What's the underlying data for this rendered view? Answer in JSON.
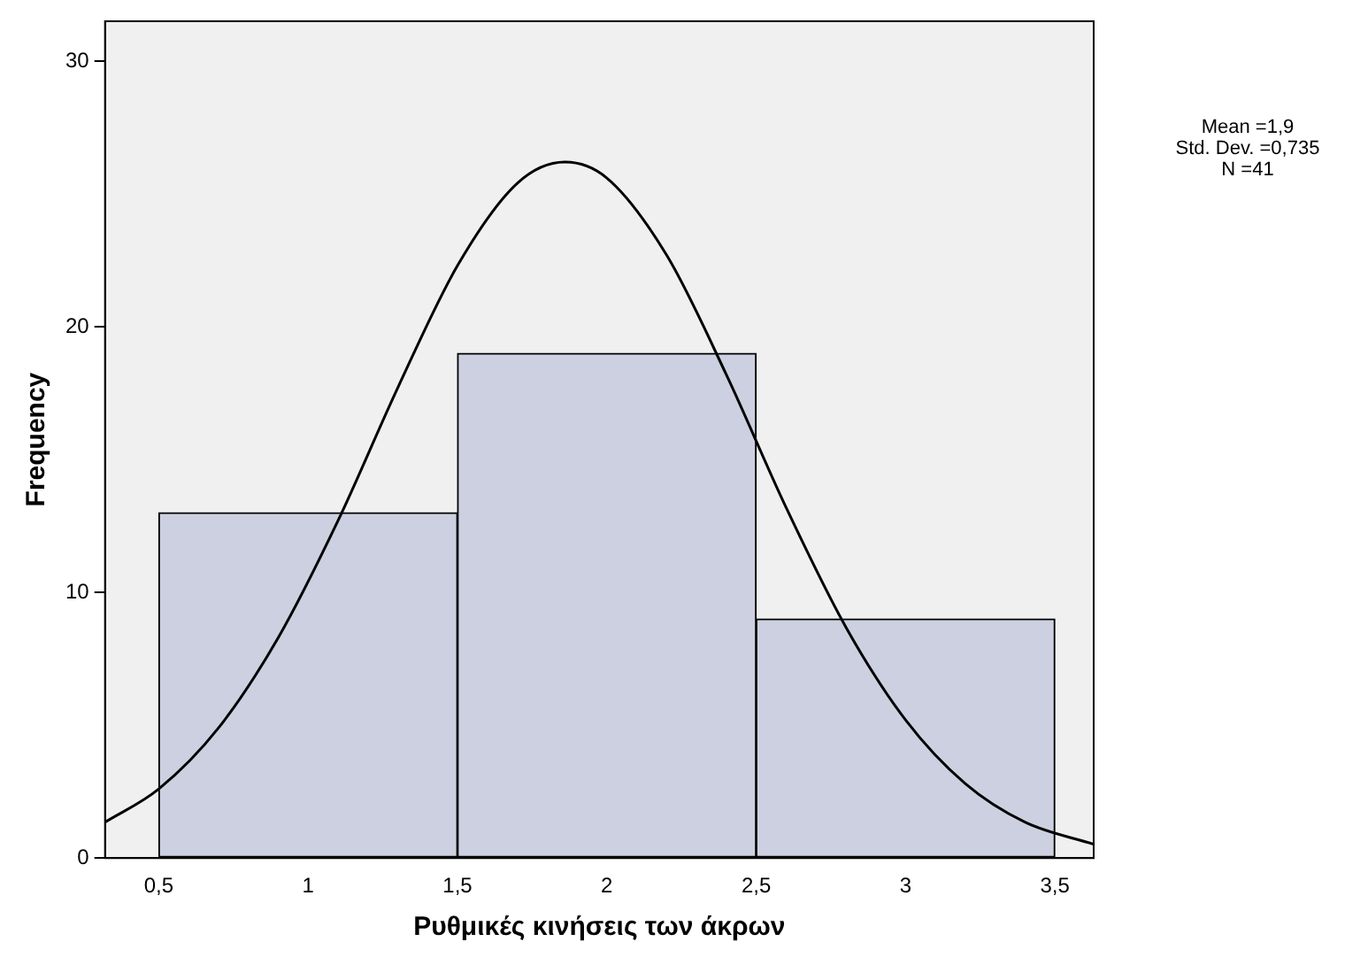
{
  "chart_data": {
    "type": "histogram",
    "xlabel": "Ρυθμικές κινήσεις των άκρων",
    "ylabel": "Frequency",
    "bins": [
      0.5,
      1.5,
      2.5,
      3.5
    ],
    "values": [
      13,
      19,
      9
    ],
    "color": "#cdd0e0",
    "series": [
      {
        "type": "line",
        "color": "#000000",
        "x": [
          0.32,
          0.5,
          0.7,
          0.9,
          1.1,
          1.3,
          1.5,
          1.7,
          1.86,
          2.0,
          2.2,
          2.4,
          2.6,
          2.8,
          3.0,
          3.2,
          3.4,
          3.63
        ],
        "values": [
          1.35,
          2.6,
          4.9,
          8.3,
          12.7,
          17.7,
          22.3,
          25.4,
          26.2,
          25.6,
          22.7,
          18.2,
          13.2,
          8.7,
          5.2,
          2.8,
          1.35,
          0.52
        ]
      }
    ],
    "xlim": [
      0.32,
      3.63
    ],
    "xticks": [
      {
        "value": 0.5,
        "label": "0,5"
      },
      1,
      {
        "value": 1.5,
        "label": "1,5"
      },
      2,
      {
        "value": 2.5,
        "label": "2,5"
      },
      3,
      {
        "value": 3.5,
        "label": "3,5"
      }
    ],
    "ylim": [
      0,
      31.5
    ],
    "yticks": [
      0,
      10,
      20,
      30
    ],
    "grid": false,
    "legend": false,
    "marker": "none",
    "annotations": [
      "Mean =1,9",
      "Std. Dev. =0,735",
      "N =41"
    ]
  }
}
